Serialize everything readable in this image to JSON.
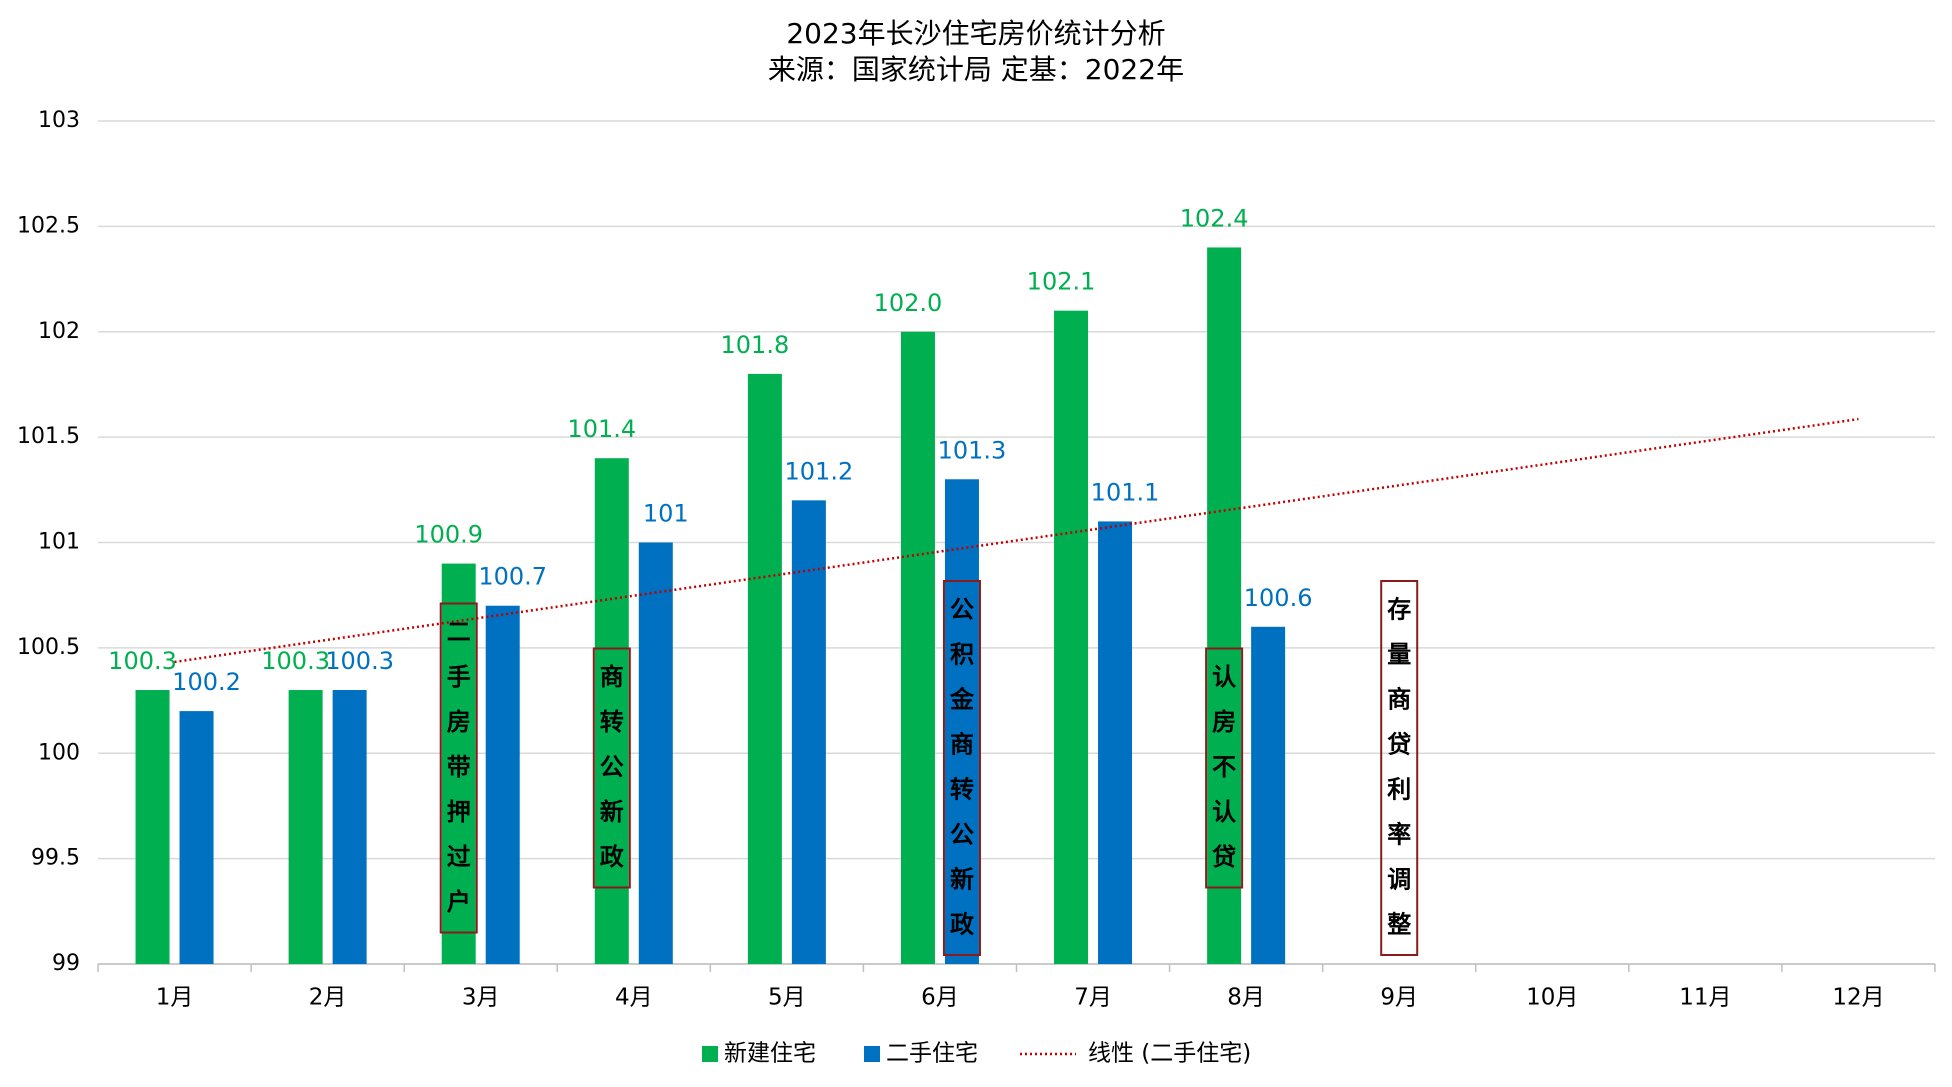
{
  "chart_data": {
    "type": "bar",
    "title": "2023年长沙住宅房价统计分析",
    "subtitle": "来源：国家统计局 定基：2022年",
    "categories": [
      "1月",
      "2月",
      "3月",
      "4月",
      "5月",
      "6月",
      "7月",
      "8月",
      "9月",
      "10月",
      "11月",
      "12月"
    ],
    "series": [
      {
        "name": "新建住宅",
        "color": "#00b050",
        "values": [
          100.3,
          100.3,
          100.9,
          101.4,
          101.8,
          102,
          102.1,
          102.4,
          null,
          null,
          null,
          null
        ],
        "value_labels": [
          "100.3",
          "100.3",
          "100.9",
          "101.4",
          "101.8",
          "102.0",
          "102.1",
          "102.4",
          null,
          null,
          null,
          null
        ]
      },
      {
        "name": "二手住宅",
        "color": "#0070c0",
        "values": [
          100.2,
          100.3,
          100.7,
          101,
          101.2,
          101.3,
          101.1,
          100.6,
          null,
          null,
          null,
          null
        ]
      }
    ],
    "trendline": {
      "name": "线性 (二手住宅)",
      "series": 1,
      "kind": "linear",
      "color": "#c00000"
    },
    "annotations": [
      {
        "text": "二手房带押过户",
        "at": "3月"
      },
      {
        "text": "商转公新政",
        "at": "4月"
      },
      {
        "text": "公积金商转公新政",
        "at": "6月"
      },
      {
        "text": "认房不认贷",
        "at": "8月"
      },
      {
        "text": "存量商贷利率调整",
        "at": "9月"
      }
    ],
    "ylim": [
      99,
      103
    ],
    "yticks": [
      99,
      99.5,
      100,
      100.5,
      101,
      101.5,
      102,
      102.5,
      103
    ],
    "grid": true,
    "legend": "bottom"
  }
}
